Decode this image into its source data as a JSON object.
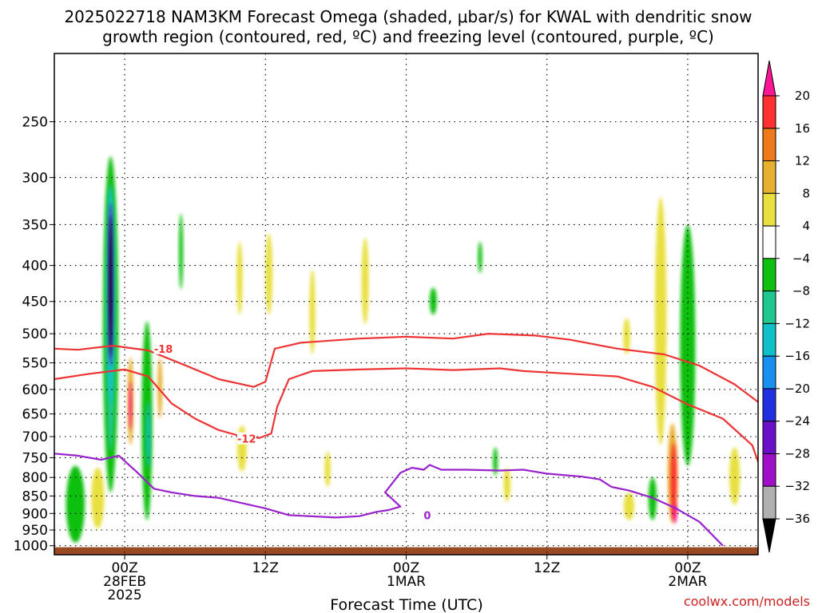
{
  "title": {
    "line1": "2025022718 NAM3KM Forecast Omega (shaded, μbar/s) for KWAL with dendritic snow",
    "line2": "growth region (contoured, red, ºC) and freezing level (contoured, purple, ºC)"
  },
  "xlabel": "Forecast Time (UTC)",
  "credit": "coolwx.com/models",
  "chart_data": {
    "type": "heatmap",
    "title": "2025022718 NAM3KM Forecast Omega (shaded, μbar/s) for KWAL with dendritic snow growth region (contoured, red, ºC) and freezing level (contoured, purple, ºC)",
    "xlabel": "Forecast Time (UTC)",
    "ylabel": "",
    "x_unit": "hours from 2025-02-27 18Z",
    "xlim": [
      0,
      60
    ],
    "y_scale": "log-pressure",
    "ylim_hPa": [
      1030,
      200
    ],
    "y_ticks": [
      250,
      300,
      350,
      400,
      450,
      500,
      550,
      600,
      650,
      700,
      750,
      800,
      850,
      900,
      950,
      1000
    ],
    "x_ticks": [
      {
        "h": 6,
        "lines": [
          "00Z",
          "28FEB",
          "2025"
        ]
      },
      {
        "h": 18,
        "lines": [
          "12Z"
        ]
      },
      {
        "h": 30,
        "lines": [
          "00Z",
          "1MAR"
        ]
      },
      {
        "h": 42,
        "lines": [
          "12Z"
        ]
      },
      {
        "h": 54,
        "lines": [
          "00Z",
          "2MAR"
        ]
      }
    ],
    "grid": true,
    "colorbar": {
      "levels": [
        20,
        16,
        12,
        8,
        4,
        -4,
        -8,
        -12,
        -16,
        -20,
        -24,
        -28,
        -32,
        -36
      ],
      "colors": [
        "#ff1493",
        "#ff3030",
        "#ee7a1a",
        "#e8b030",
        "#e8e040",
        "#ffffff",
        "#10c010",
        "#20c890",
        "#10c0c8",
        "#1890f0",
        "#2030e0",
        "#6a10c8",
        "#a010c8",
        "#b0b0b0",
        "#000000"
      ]
    },
    "shaded_regions": [
      {
        "omega": -8,
        "h": 1.8,
        "p": 880,
        "dh": 1.6,
        "dp": 220
      },
      {
        "omega": -8,
        "h": 4.8,
        "p": 560,
        "dh": 1.3,
        "dp": 560
      },
      {
        "omega": -12,
        "h": 4.8,
        "p": 520,
        "dh": 0.8,
        "dp": 430
      },
      {
        "omega": -16,
        "h": 4.8,
        "p": 470,
        "dh": 0.55,
        "dp": 320
      },
      {
        "omega": -24,
        "h": 4.8,
        "p": 440,
        "dh": 0.35,
        "dp": 230
      },
      {
        "omega": -36,
        "h": 4.8,
        "p": 440,
        "dh": 0.25,
        "dp": 200
      },
      {
        "omega": -8,
        "h": 7.9,
        "p": 700,
        "dh": 0.9,
        "dp": 440
      },
      {
        "omega": -16,
        "h": 8.0,
        "p": 700,
        "dh": 0.35,
        "dp": 150
      },
      {
        "omega": -8,
        "h": 10.8,
        "p": 385,
        "dh": 0.35,
        "dp": 95
      },
      {
        "omega": 8,
        "h": 6.5,
        "p": 630,
        "dh": 0.5,
        "dp": 180
      },
      {
        "omega": 20,
        "h": 6.5,
        "p": 635,
        "dh": 0.25,
        "dp": 100
      },
      {
        "omega": 4,
        "h": 3.7,
        "p": 860,
        "dh": 1.1,
        "dp": 170
      },
      {
        "omega": 8,
        "h": 9.0,
        "p": 600,
        "dh": 0.4,
        "dp": 120
      },
      {
        "omega": 4,
        "h": 15.8,
        "p": 420,
        "dh": 0.5,
        "dp": 100
      },
      {
        "omega": 4,
        "h": 18.3,
        "p": 415,
        "dh": 0.6,
        "dp": 110
      },
      {
        "omega": 4,
        "h": 22.0,
        "p": 470,
        "dh": 0.5,
        "dp": 130
      },
      {
        "omega": 4,
        "h": 16.0,
        "p": 730,
        "dh": 0.8,
        "dp": 110
      },
      {
        "omega": 4,
        "h": 23.3,
        "p": 780,
        "dh": 0.5,
        "dp": 90
      },
      {
        "omega": 4,
        "h": 26.5,
        "p": 425,
        "dh": 0.6,
        "dp": 120
      },
      {
        "omega": -8,
        "h": 32.3,
        "p": 450,
        "dh": 0.6,
        "dp": 40
      },
      {
        "omega": -8,
        "h": 36.3,
        "p": 390,
        "dh": 0.35,
        "dp": 40
      },
      {
        "omega": -8,
        "h": 37.6,
        "p": 760,
        "dh": 0.4,
        "dp": 70
      },
      {
        "omega": 4,
        "h": 38.6,
        "p": 820,
        "dh": 0.6,
        "dp": 90
      },
      {
        "omega": 4,
        "h": 48.8,
        "p": 505,
        "dh": 0.6,
        "dp": 60
      },
      {
        "omega": 4,
        "h": 51.7,
        "p": 520,
        "dh": 1.0,
        "dp": 400
      },
      {
        "omega": -8,
        "h": 54.0,
        "p": 560,
        "dh": 1.3,
        "dp": 420
      },
      {
        "omega": -8,
        "h": 51.0,
        "p": 860,
        "dh": 0.7,
        "dp": 120
      },
      {
        "omega": 8,
        "h": 52.7,
        "p": 800,
        "dh": 0.8,
        "dp": 260
      },
      {
        "omega": 16,
        "h": 52.8,
        "p": 815,
        "dh": 0.5,
        "dp": 200
      },
      {
        "omega": 20,
        "h": 52.9,
        "p": 900,
        "dh": 0.35,
        "dp": 60
      },
      {
        "omega": 4,
        "h": 49.0,
        "p": 880,
        "dh": 0.9,
        "dp": 80
      },
      {
        "omega": 4,
        "h": 58.0,
        "p": 800,
        "dh": 0.9,
        "dp": 150
      }
    ],
    "series": [
      {
        "name": "-18",
        "color": "#ee3333",
        "points": [
          [
            0,
            525
          ],
          [
            2,
            527
          ],
          [
            5,
            520
          ],
          [
            8,
            528
          ],
          [
            11,
            553
          ],
          [
            14,
            580
          ],
          [
            17,
            595
          ],
          [
            18,
            585
          ],
          [
            18.8,
            525
          ],
          [
            21,
            515
          ],
          [
            26,
            508
          ],
          [
            30,
            505
          ],
          [
            34,
            508
          ],
          [
            37,
            500
          ],
          [
            41,
            503
          ],
          [
            44,
            510
          ],
          [
            48,
            525
          ],
          [
            52,
            535
          ],
          [
            55,
            555
          ],
          [
            58,
            590
          ],
          [
            60,
            625
          ]
        ],
        "label_at": [
          9.3,
          525
        ]
      },
      {
        "name": "-12",
        "color": "#ee3333",
        "points": [
          [
            0,
            580
          ],
          [
            3,
            570
          ],
          [
            6,
            562
          ],
          [
            8,
            575
          ],
          [
            10,
            628
          ],
          [
            12,
            660
          ],
          [
            14,
            685
          ],
          [
            16,
            700
          ],
          [
            17.5,
            703
          ],
          [
            18.5,
            693
          ],
          [
            19,
            635
          ],
          [
            20,
            580
          ],
          [
            22,
            565
          ],
          [
            26,
            562
          ],
          [
            30,
            560
          ],
          [
            34,
            563
          ],
          [
            38,
            560
          ],
          [
            40,
            565
          ],
          [
            44,
            570
          ],
          [
            48,
            575
          ],
          [
            51,
            595
          ],
          [
            54,
            630
          ],
          [
            57,
            660
          ],
          [
            59.5,
            720
          ],
          [
            60,
            760
          ]
        ],
        "label_at": [
          16.4,
          705
        ]
      },
      {
        "name": "0",
        "color": "#9922cc",
        "points": [
          [
            0,
            740
          ],
          [
            2,
            745
          ],
          [
            4,
            755
          ],
          [
            5.5,
            745
          ],
          [
            7,
            785
          ],
          [
            8.5,
            830
          ],
          [
            10,
            840
          ],
          [
            12,
            850
          ],
          [
            14,
            855
          ],
          [
            16,
            870
          ],
          [
            18,
            885
          ],
          [
            20,
            905
          ],
          [
            24,
            912
          ],
          [
            26,
            908
          ],
          [
            27.5,
            895
          ],
          [
            28.5,
            890
          ],
          [
            29.5,
            880
          ],
          [
            28.2,
            840
          ],
          [
            29.5,
            788
          ],
          [
            30.5,
            775
          ],
          [
            31.5,
            780
          ],
          [
            32,
            768
          ],
          [
            33,
            780
          ],
          [
            35,
            780
          ],
          [
            38,
            782
          ],
          [
            40,
            780
          ],
          [
            42,
            790
          ],
          [
            45,
            798
          ],
          [
            46.5,
            805
          ],
          [
            47.5,
            825
          ],
          [
            49,
            835
          ],
          [
            51,
            855
          ],
          [
            53,
            885
          ],
          [
            55,
            925
          ],
          [
            57,
            1000
          ]
        ],
        "label_at": [
          31.8,
          905
        ]
      }
    ]
  }
}
